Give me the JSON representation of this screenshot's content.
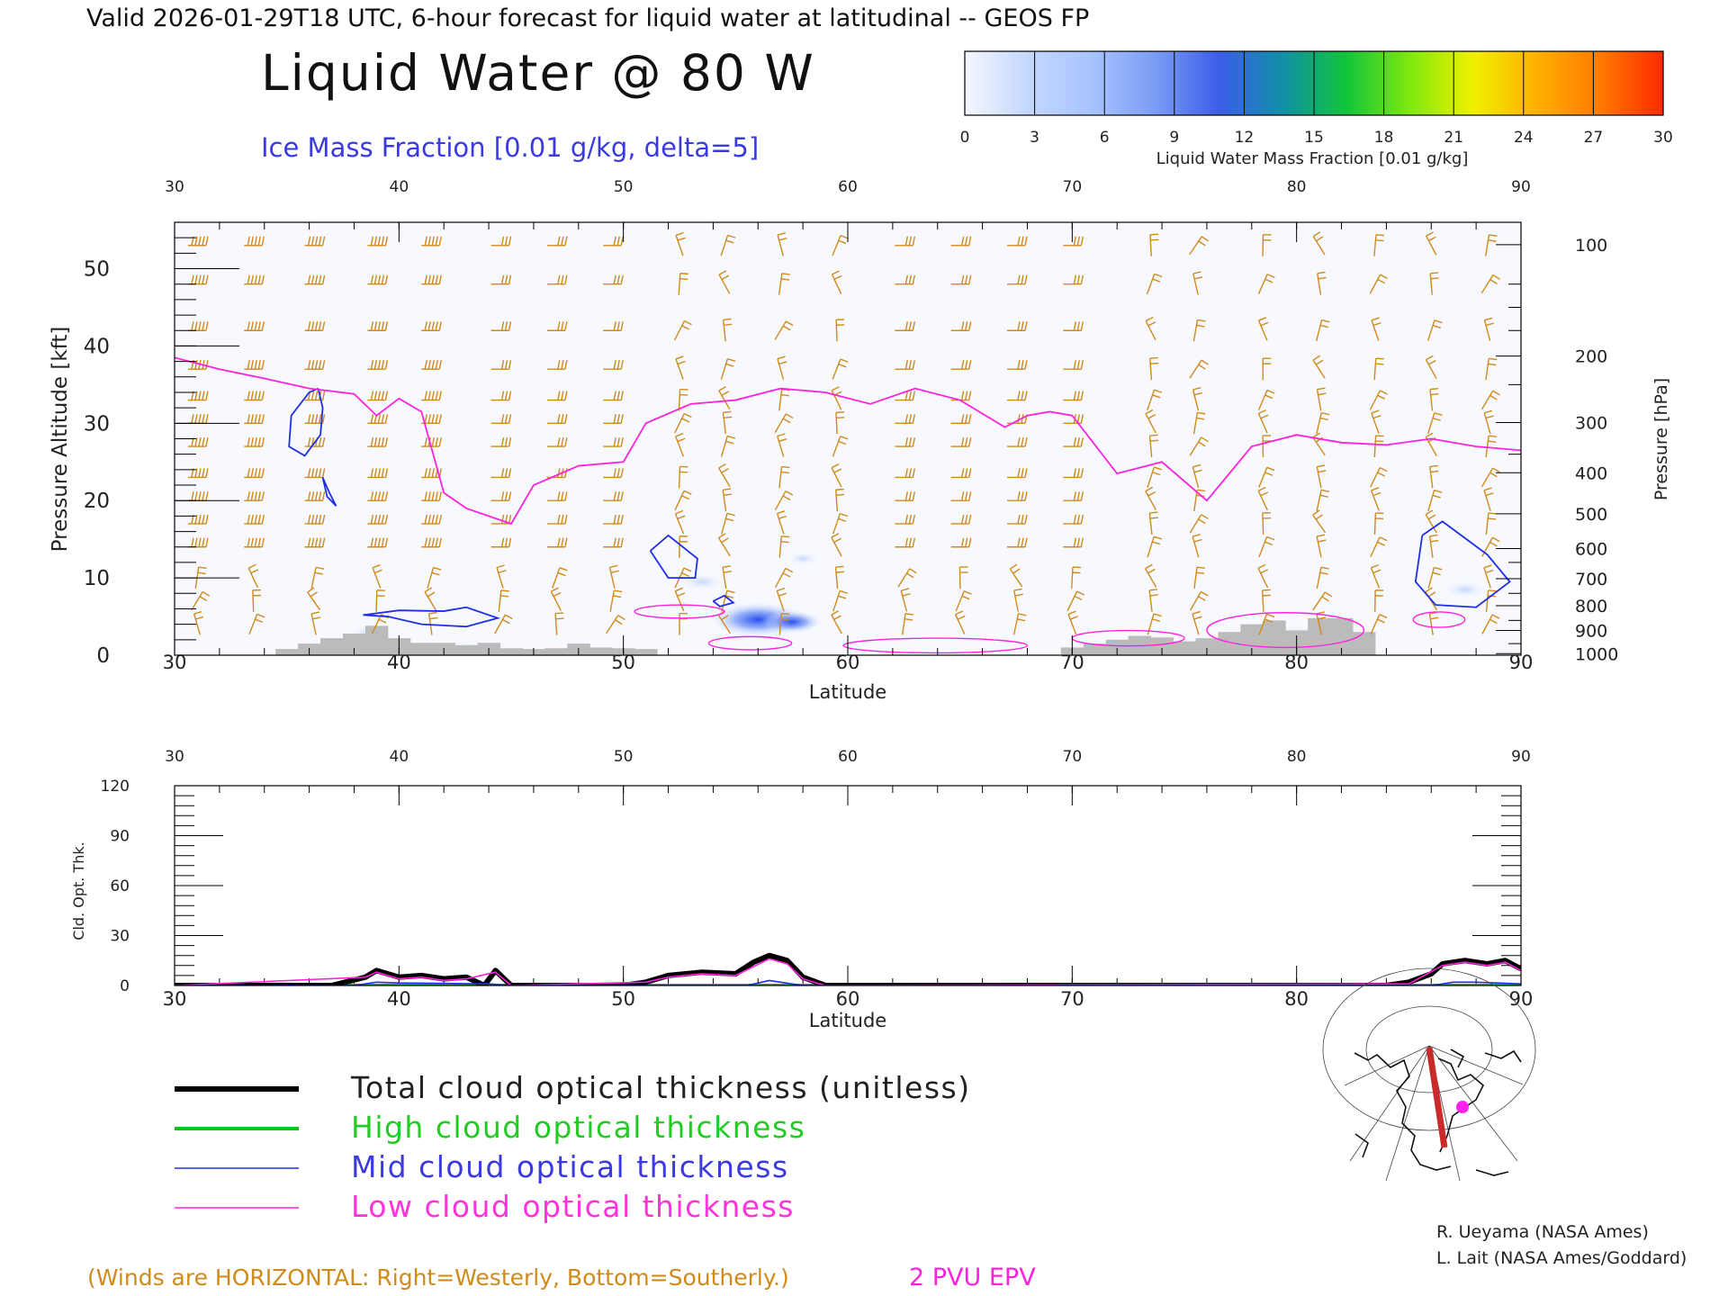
{
  "header": {
    "valid_line": "Valid 2026-01-29T18 UTC, 6-hour forecast for liquid water at latitudinal -- GEOS FP",
    "title": "Liquid Water @ 80 W",
    "subtitle": "Ice Mass Fraction [0.01 g/kg, delta=5]"
  },
  "colorbar": {
    "ticks": [
      "0",
      "3",
      "6",
      "9",
      "12",
      "15",
      "18",
      "21",
      "24",
      "27",
      "30"
    ],
    "label": "Liquid Water Mass Fraction [0.01 g/kg]",
    "colors": [
      "#f4f7ff",
      "#c4d7ff",
      "#a8c4ff",
      "#7b9cf5",
      "#3c5de8",
      "#118fa8",
      "#11c43a",
      "#7ee80e",
      "#f0f000",
      "#ffb000",
      "#ff7a00",
      "#ff2a00"
    ]
  },
  "chart_data": [
    {
      "type": "contour",
      "name": "liquid_water_cross_section",
      "xlabel": "Latitude",
      "ylabel": "Pressure Altitude [kft]",
      "y2label": "Pressure [hPa]",
      "xlim": [
        30,
        90
      ],
      "ylim": [
        0,
        56
      ],
      "x_ticks": [
        30,
        40,
        50,
        60,
        70,
        80,
        90
      ],
      "y_ticks": [
        0,
        10,
        20,
        30,
        40,
        50
      ],
      "pressure_ticks": [
        {
          "label": "100",
          "kft": 53.1
        },
        {
          "label": "200",
          "kft": 38.7
        },
        {
          "label": "300",
          "kft": 30.1
        },
        {
          "label": "400",
          "kft": 23.6
        },
        {
          "label": "500",
          "kft": 18.3
        },
        {
          "label": "600",
          "kft": 13.8
        },
        {
          "label": "700",
          "kft": 9.9
        },
        {
          "label": "800",
          "kft": 6.4
        },
        {
          "label": "900",
          "kft": 3.2
        },
        {
          "label": "1000",
          "kft": 0.2
        }
      ],
      "epv_2pvu_line": {
        "lat": [
          30,
          32,
          34,
          36,
          38,
          39,
          40,
          41,
          42,
          43,
          45,
          46,
          48,
          50,
          51,
          53,
          55,
          57,
          59,
          61,
          63,
          65,
          67,
          68,
          69,
          70,
          72,
          74,
          76,
          78,
          80,
          82,
          84,
          86,
          88,
          90
        ],
        "kft": [
          38.5,
          37,
          35.8,
          34.5,
          33.8,
          31,
          33.2,
          31.5,
          21,
          19,
          17,
          22,
          24.5,
          25,
          30,
          32.5,
          33,
          34.5,
          34,
          32.5,
          34.5,
          33,
          29.5,
          31,
          31.5,
          31,
          23.5,
          25,
          20,
          27,
          28.5,
          27.5,
          27.2,
          28,
          27,
          26.5
        ]
      },
      "ice_contours_5": [
        {
          "lat": [
            36.4,
            36.0,
            35.2,
            35.1,
            35.8,
            36.5,
            36.6,
            36.4
          ],
          "kft": [
            34.5,
            34.0,
            31.0,
            27.0,
            25.8,
            28.5,
            32.0,
            34.5
          ]
        },
        {
          "lat": [
            36.6,
            36.8,
            37.2,
            36.9,
            36.6
          ],
          "kft": [
            23.0,
            20.5,
            19.3,
            21.0,
            23.0
          ]
        },
        {
          "lat": [
            38.4,
            40.0,
            42.0,
            43.0,
            44.4,
            43.0,
            41.0,
            39.5,
            38.4
          ],
          "kft": [
            5.2,
            5.8,
            5.7,
            6.2,
            4.8,
            3.7,
            4.0,
            5.0,
            5.2
          ]
        },
        {
          "lat": [
            51.2,
            52.0,
            53.3,
            53.2,
            52.0,
            51.2
          ],
          "kft": [
            13.5,
            15.5,
            12.5,
            10.0,
            10.0,
            13.5
          ]
        },
        {
          "lat": [
            54.0,
            54.5,
            54.9,
            54.3,
            54.0
          ],
          "kft": [
            7.0,
            7.7,
            6.8,
            6.3,
            7.0
          ]
        },
        {
          "lat": [
            85.6,
            86.5,
            88.5,
            89.5,
            88.0,
            86.2,
            85.3,
            85.6
          ],
          "kft": [
            15.5,
            17.3,
            13.0,
            9.5,
            6.2,
            6.5,
            9.5,
            15.5
          ]
        }
      ],
      "liquid_blobs": [
        {
          "lat": 56.0,
          "kft": 4.6,
          "value": 12
        },
        {
          "lat": 57.5,
          "kft": 4.3,
          "value": 6
        },
        {
          "lat": 53.5,
          "kft": 9.5,
          "value": 3
        },
        {
          "lat": 38.8,
          "kft": 3.0,
          "value": 3
        },
        {
          "lat": 87.5,
          "kft": 8.5,
          "value": 3
        },
        {
          "lat": 43.0,
          "kft": 0.8,
          "value": 2
        },
        {
          "lat": 80.0,
          "kft": 2.8,
          "value": 2
        },
        {
          "lat": 58.0,
          "kft": 12.5,
          "value": 1
        }
      ],
      "terrain": {
        "lat": [
          35,
          36,
          37,
          38,
          39,
          40,
          41,
          42,
          43,
          44,
          45,
          46,
          47,
          48,
          49,
          50,
          51,
          70,
          71,
          72,
          73,
          74,
          75,
          76,
          77,
          78,
          79,
          80,
          81,
          82,
          83
        ],
        "kft": [
          0.8,
          1.5,
          2.2,
          2.8,
          3.8,
          2.2,
          1.6,
          1.6,
          1.3,
          1.6,
          0.9,
          0.8,
          0.9,
          1.5,
          1.0,
          0.9,
          0.8,
          1.0,
          1.5,
          2.0,
          2.5,
          2.3,
          1.8,
          2.2,
          3.0,
          4.0,
          4.5,
          3.2,
          4.8,
          4.8,
          3.0
        ]
      }
    },
    {
      "type": "line",
      "name": "cloud_optical_thickness",
      "xlabel": "Latitude",
      "ylabel": "Cld. Opt. Thk.",
      "xlim": [
        30,
        90
      ],
      "ylim": [
        0,
        120
      ],
      "x_ticks": [
        30,
        40,
        50,
        60,
        70,
        80,
        90
      ],
      "y_ticks": [
        0,
        30,
        60,
        90,
        120
      ],
      "series": [
        {
          "name": "Total cloud optical thickness (unitless)",
          "color": "#000000",
          "x": [
            30,
            37,
            38.5,
            39,
            40,
            41,
            42,
            43,
            43.8,
            44.3,
            45,
            50,
            51,
            52,
            53.5,
            55,
            55.8,
            56.5,
            57.3,
            58,
            59,
            60,
            84,
            85,
            86,
            86.5,
            87.5,
            88.5,
            89.3,
            90
          ],
          "y": [
            0,
            0,
            5,
            9,
            5,
            6,
            4,
            5,
            0,
            9,
            0,
            0,
            2,
            6,
            8,
            7,
            14,
            18,
            15,
            5,
            0,
            0,
            0,
            2,
            7,
            13,
            15,
            13,
            15,
            10
          ]
        },
        {
          "name": "High cloud optical thickness",
          "color": "#11c41a",
          "x": [
            30,
            90
          ],
          "y": [
            0,
            0
          ]
        },
        {
          "name": "Mid cloud optical thickness",
          "color": "#1f2ee6",
          "x": [
            30,
            38,
            39,
            40,
            44,
            45,
            50,
            55.5,
            56.5,
            57.5,
            58,
            86,
            87,
            88,
            90
          ],
          "y": [
            0,
            0,
            2,
            1.5,
            1,
            0,
            0,
            0,
            3,
            1,
            0,
            0,
            2,
            2,
            1
          ]
        },
        {
          "name": "Low cloud optical thickness",
          "color": "#ff22dd",
          "x": [
            30,
            38.5,
            39,
            40,
            41,
            42,
            43,
            44.3,
            45,
            51,
            52,
            53.5,
            55,
            56.5,
            57.3,
            58,
            59,
            85,
            86.5,
            87.5,
            88.5,
            89.3,
            90
          ],
          "y": [
            0,
            5,
            8,
            4,
            5,
            3,
            4,
            8,
            0,
            2,
            5,
            7,
            6,
            16,
            13,
            4,
            0,
            1,
            12,
            14,
            12,
            14,
            9
          ]
        }
      ]
    }
  ],
  "legend": {
    "items": [
      {
        "label": "Total cloud optical thickness (unitless)",
        "color": "#000000",
        "text_color": "#222222"
      },
      {
        "label": "High cloud optical thickness",
        "color": "#11c41a",
        "text_color": "#22cc22"
      },
      {
        "label": "Mid cloud optical thickness",
        "color": "#1f2ee6",
        "text_color": "#3a3ae0"
      },
      {
        "label": "Low cloud optical thickness",
        "color": "#ff22dd",
        "text_color": "#ff33dd"
      }
    ]
  },
  "credits": {
    "line1": "R. Ueyama (NASA Ames)",
    "line2": "L. Lait (NASA Ames/Goddard)"
  },
  "footer": {
    "winds_note": "(Winds are HORIZONTAL: Right=Westerly, Bottom=Southerly.)",
    "epv_label": "2 PVU EPV"
  },
  "colors": {
    "wind_barbs": "#d08a1a",
    "epv_line": "#ff22dd",
    "ice_contour": "#1f2ee6",
    "terrain": "#bbbbbb"
  }
}
